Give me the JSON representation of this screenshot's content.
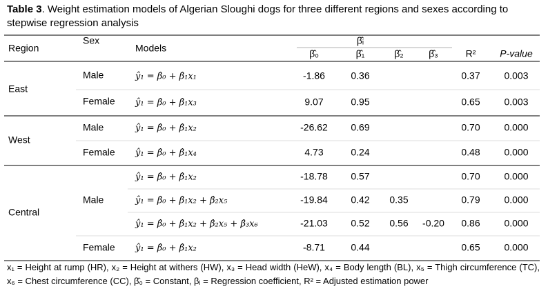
{
  "title": {
    "label": "Table 3",
    "text": ". Weight estimation models of Algerian Sloughi dogs for three different regions and sexes according to stepwise regression analysis"
  },
  "header": {
    "region": "Region",
    "sex": "Sex",
    "models": "Models",
    "beta_i": "β̂ᵢ",
    "b0": "β̂₀",
    "b1": "β̂₁",
    "b2": "β̂₂",
    "b3": "β̂₃",
    "r2": "R²",
    "p": "P-value"
  },
  "groups": [
    {
      "region": "East",
      "subgroups": [
        {
          "sex": "Male",
          "rows": [
            {
              "model": "ŷ₁ = β̂₀ + β̂₁x₁",
              "b0": "-1.86",
              "b1": "0.36",
              "r2": "0.37",
              "p": "0.003"
            }
          ]
        },
        {
          "sex": "Female",
          "rows": [
            {
              "model": "ŷ₁ = β̂₀ + β̂₁x₃",
              "b0": "9.07",
              "b1": "0.95",
              "r2": "0.65",
              "p": "0.003"
            }
          ]
        }
      ]
    },
    {
      "region": "West",
      "subgroups": [
        {
          "sex": "Male",
          "rows": [
            {
              "model": "ŷ₁ = β̂₀ + β̂₁x₂",
              "b0": "-26.62",
              "b1": "0.69",
              "r2": "0.70",
              "p": "0.000"
            }
          ]
        },
        {
          "sex": "Female",
          "rows": [
            {
              "model": "ŷ₁ = β̂₀ + β̂₁x₄",
              "b0": "4.73",
              "b1": "0.24",
              "r2": "0.48",
              "p": "0.000"
            }
          ]
        }
      ]
    },
    {
      "region": "Central",
      "subgroups": [
        {
          "sex": "Male",
          "rows": [
            {
              "model": "ŷ₁ = β̂₀ + β̂₁x₂",
              "b0": "-18.78",
              "b1": "0.57",
              "r2": "0.70",
              "p": "0.000"
            },
            {
              "model": "ŷ₁ = β̂₀ + β̂₁x₂ + β̂₂x₅",
              "b0": "-19.84",
              "b1": "0.42",
              "b2": "0.35",
              "r2": "0.79",
              "p": "0.000"
            },
            {
              "model": "ŷ₁ = β̂₀ + β̂₁x₂ + β̂₂x₅ + β̂₃x₆",
              "b0": "-21.03",
              "b1": "0.52",
              "b2": "0.56",
              "b3": "-0.20",
              "r2": "0.86",
              "p": "0.000"
            }
          ]
        },
        {
          "sex": "Female",
          "rows": [
            {
              "model": "ŷ₁ = β̂₀ + β̂₁x₂",
              "b0": "-8.71",
              "b1": "0.44",
              "r2": "0.65",
              "p": "0.000"
            }
          ]
        }
      ]
    }
  ],
  "footnote": "x₁ = Height at rump (HR), x₂ = Height at withers (HW), x₃ = Head width (HeW), x₄ = Body length (BL), x₅ = Thigh circumference (TC), x₆ = Chest circumference (CC), β̂₀ = Constant, βᵢ = Regression coefficient, R² = Adjusted estimation power"
}
